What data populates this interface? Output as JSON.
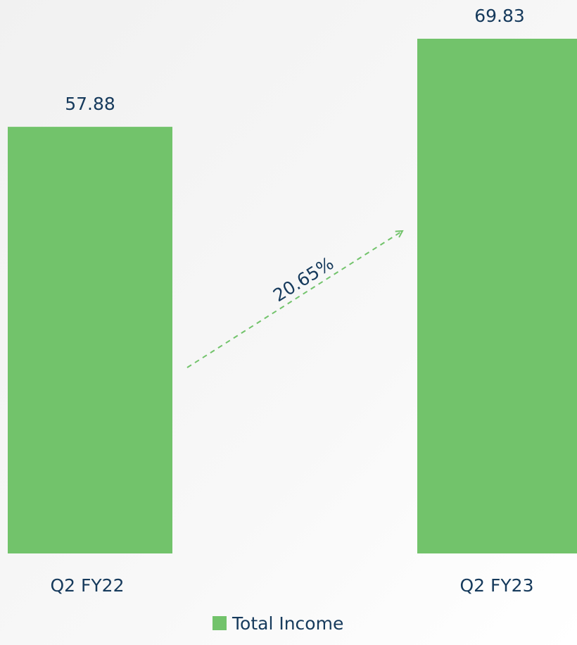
{
  "chart_data": {
    "type": "bar",
    "categories": [
      "Q2 FY22",
      "Q2 FY23"
    ],
    "series": [
      {
        "name": "Total Income",
        "color": "#72c36b",
        "values": [
          57.88,
          69.83
        ]
      }
    ],
    "annotations": [
      {
        "text": "20.65%"
      }
    ]
  }
}
